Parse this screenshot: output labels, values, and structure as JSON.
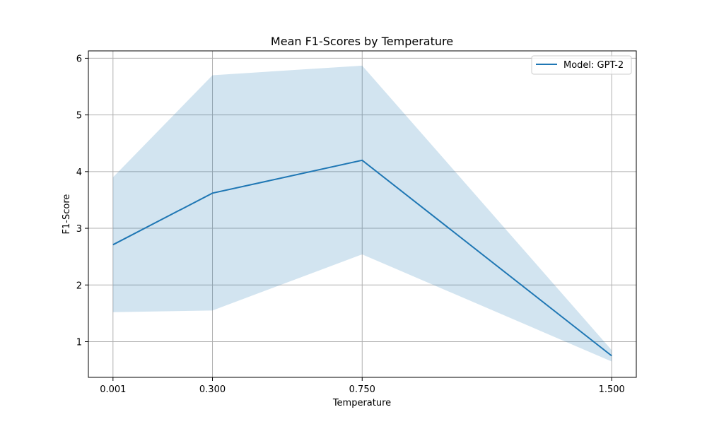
{
  "chart_data": {
    "type": "line",
    "title": "Mean F1-Scores by Temperature",
    "xlabel": "Temperature",
    "ylabel": "F1-Score",
    "x": [
      0.001,
      0.3,
      0.75,
      1.5
    ],
    "x_tick_labels": [
      "0.001",
      "0.300",
      "0.750",
      "1.500"
    ],
    "y_ticks": [
      1,
      2,
      3,
      4,
      5,
      6
    ],
    "xlim": [
      -0.073,
      1.574
    ],
    "ylim": [
      0.37,
      6.13
    ],
    "grid": true,
    "legend_position": "top-right",
    "series": [
      {
        "name": "Model: GPT-2",
        "values": [
          2.71,
          3.62,
          4.2,
          0.75
        ],
        "band_lower": [
          1.52,
          1.55,
          2.54,
          0.65
        ],
        "band_upper": [
          3.9,
          5.7,
          5.87,
          0.85
        ],
        "color": "#1f77b4",
        "band_color": "#1f77b4",
        "band_opacity": 0.2
      }
    ]
  }
}
